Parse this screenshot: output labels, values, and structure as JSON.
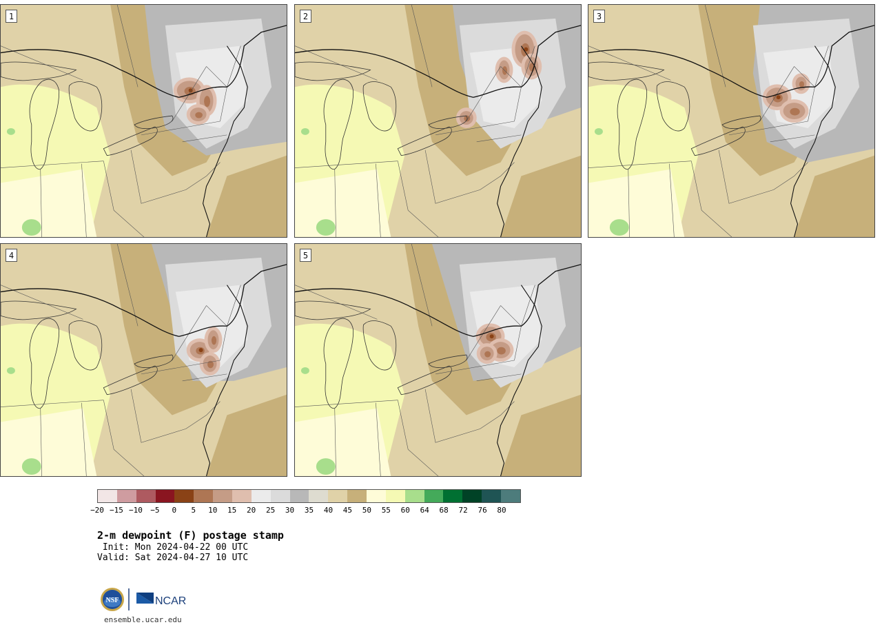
{
  "panels": [
    {
      "label": "1",
      "variant": 0
    },
    {
      "label": "2",
      "variant": 1
    },
    {
      "label": "3",
      "variant": 2
    },
    {
      "label": "4",
      "variant": 3
    },
    {
      "label": "5",
      "variant": 4
    }
  ],
  "legend": {
    "colors": [
      "#f2e6e6",
      "#cf9ca0",
      "#ae5a60",
      "#8a1520",
      "#8a4216",
      "#ae7654",
      "#c59c86",
      "#dfbeae",
      "#ebebeb",
      "#dbdbdb",
      "#b8b8b8",
      "#dedcd0",
      "#e0d2a8",
      "#c7b07a",
      "#fefcd8",
      "#f5f9b4",
      "#a8de8c",
      "#44aa5a",
      "#007032",
      "#004226",
      "#1f5454",
      "#4d7c7c"
    ],
    "tick_labels": [
      "−20",
      "−15",
      "−10",
      "−5",
      "0",
      "5",
      "10",
      "15",
      "20",
      "25",
      "30",
      "35",
      "40",
      "45",
      "50",
      "55",
      "60",
      "64",
      "68",
      "72",
      "76",
      "80"
    ]
  },
  "title": "2-m dewpoint (F) postage stamp",
  "init": " Init: Mon 2024-04-22 00 UTC",
  "valid": "Valid: Sat 2024-04-27 10 UTC",
  "logos": {
    "nsf": "NSF",
    "ncar": "NCAR"
  },
  "url": "ensemble.ucar.edu"
}
